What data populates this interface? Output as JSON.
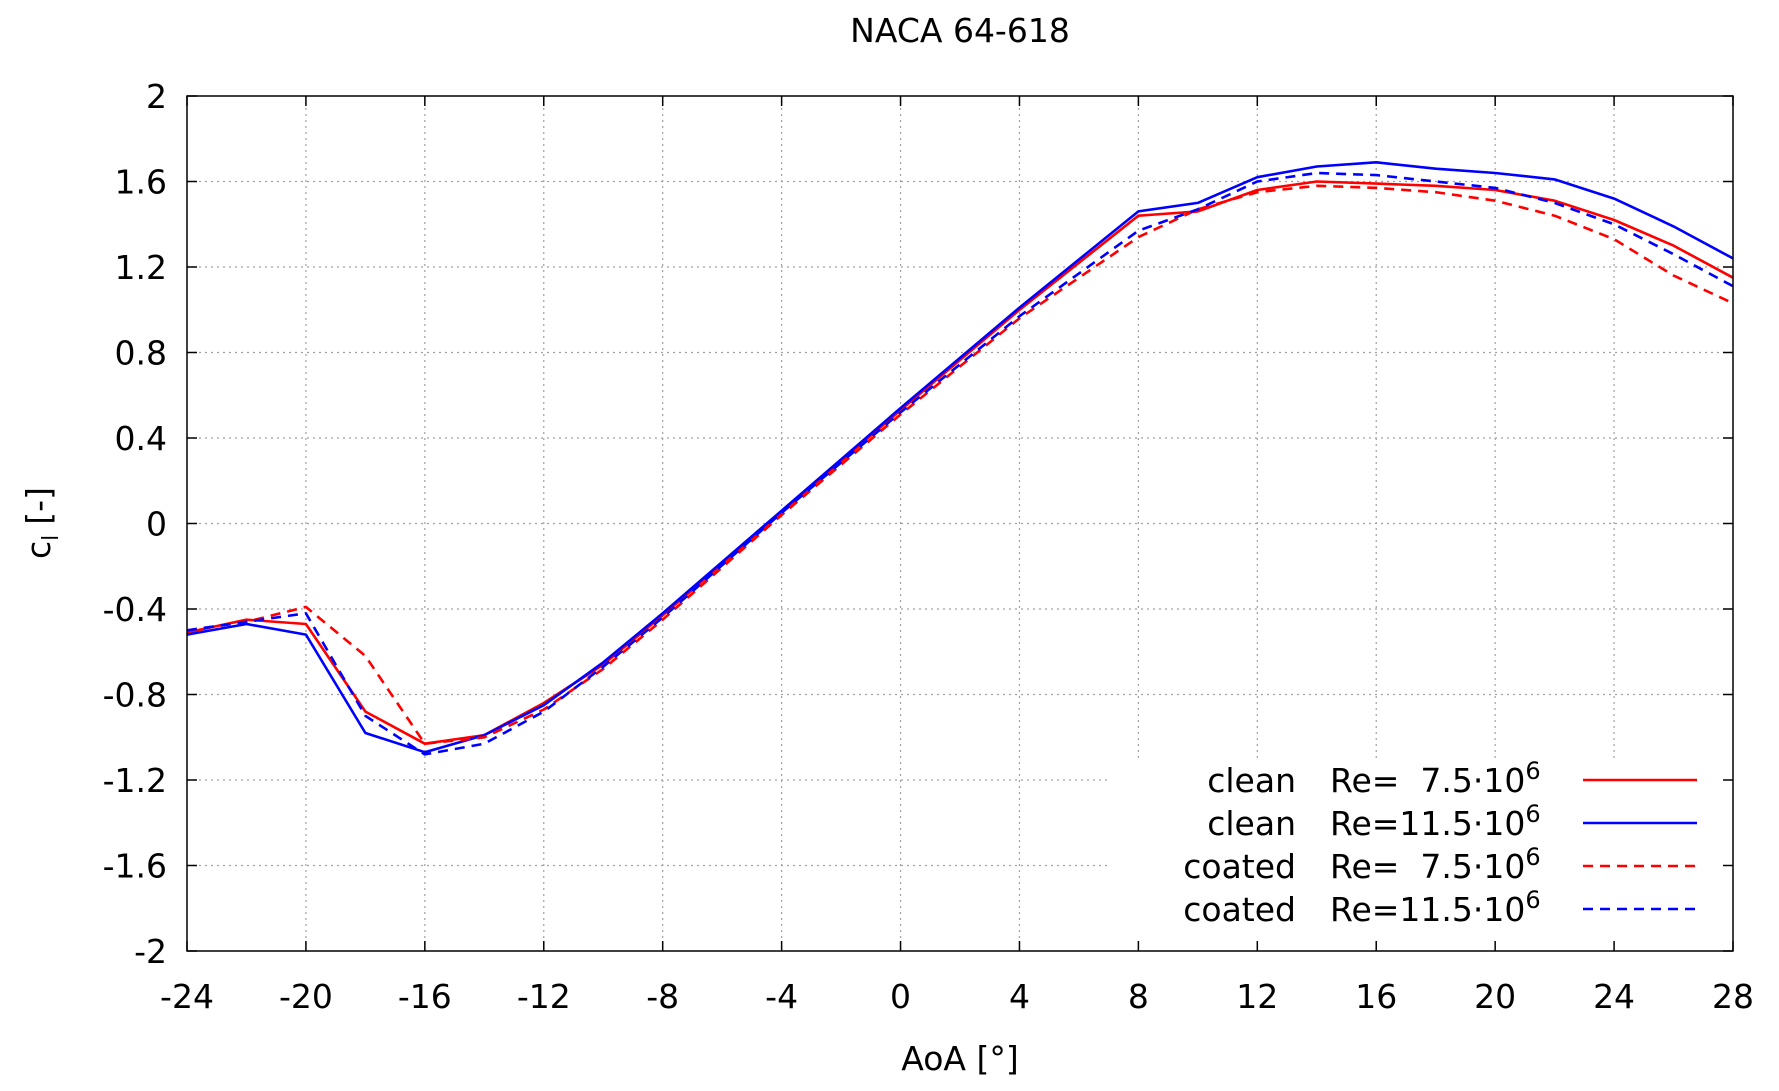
{
  "chart_data": {
    "type": "line",
    "title": "NACA 64-618",
    "xlabel": "AoA [°]",
    "ylabel_main": "c",
    "ylabel_sub": "l",
    "ylabel_unit": "[-]",
    "xlim": [
      -24,
      28
    ],
    "ylim": [
      -2,
      2
    ],
    "xticks": [
      -24,
      -20,
      -16,
      -12,
      -8,
      -4,
      0,
      4,
      8,
      12,
      16,
      20,
      24,
      28
    ],
    "xtick_labels": [
      "-24",
      "-20",
      "-16",
      "-12",
      "-8",
      "-4",
      "0",
      "4",
      "8",
      "12",
      "16",
      "20",
      "24",
      "28"
    ],
    "yticks": [
      2,
      1.6,
      1.2,
      0.8,
      0.4,
      0,
      -0.4,
      -0.8,
      -1.2,
      -1.6,
      -2
    ],
    "ytick_labels": [
      "2",
      "1.6",
      "1.2",
      "0.8",
      "0.4",
      "0",
      "-0.4",
      "-0.8",
      "-1.2",
      "-1.6",
      "-2"
    ],
    "grid": true,
    "legend_position": "bottom-right",
    "series": [
      {
        "name": "clean Re= 7.5·10^6",
        "legend_condition": "clean",
        "legend_re": "Re=  7.5·10",
        "legend_exp": "6",
        "color": "#ff0000",
        "dash": "solid",
        "x": [
          -24,
          -22,
          -20,
          -18,
          -16,
          -14,
          -12,
          -10,
          -8,
          -4,
          0,
          4,
          8,
          10,
          12,
          14,
          16,
          18,
          20,
          22,
          24,
          26,
          28
        ],
        "y": [
          -0.51,
          -0.45,
          -0.47,
          -0.88,
          -1.03,
          -0.99,
          -0.84,
          -0.66,
          -0.43,
          0.05,
          0.53,
          1.0,
          1.44,
          1.46,
          1.56,
          1.6,
          1.59,
          1.58,
          1.56,
          1.51,
          1.42,
          1.3,
          1.15
        ]
      },
      {
        "name": "clean Re=11.5·10^6",
        "legend_condition": "clean",
        "legend_re": "Re=11.5·10",
        "legend_exp": "6",
        "color": "#0000ff",
        "dash": "solid",
        "x": [
          -24,
          -22,
          -20,
          -18,
          -16,
          -14,
          -12,
          -10,
          -8,
          -4,
          0,
          4,
          8,
          10,
          12,
          14,
          16,
          18,
          20,
          22,
          24,
          26,
          28
        ],
        "y": [
          -0.52,
          -0.47,
          -0.52,
          -0.98,
          -1.07,
          -0.99,
          -0.85,
          -0.65,
          -0.42,
          0.06,
          0.54,
          1.01,
          1.46,
          1.5,
          1.62,
          1.67,
          1.69,
          1.66,
          1.64,
          1.61,
          1.52,
          1.39,
          1.24
        ]
      },
      {
        "name": "coated Re= 7.5·10^6",
        "legend_condition": "coated",
        "legend_re": "Re=  7.5·10",
        "legend_exp": "6",
        "color": "#ff0000",
        "dash": "dashed",
        "x": [
          -24,
          -22,
          -20,
          -18,
          -16,
          -14,
          -12,
          -10,
          -8,
          -4,
          0,
          4,
          8,
          10,
          12,
          14,
          16,
          18,
          20,
          22,
          24,
          26,
          28
        ],
        "y": [
          -0.5,
          -0.46,
          -0.39,
          -0.62,
          -1.03,
          -1.0,
          -0.87,
          -0.68,
          -0.45,
          0.04,
          0.51,
          0.96,
          1.34,
          1.47,
          1.55,
          1.58,
          1.57,
          1.55,
          1.51,
          1.44,
          1.33,
          1.16,
          1.03
        ]
      },
      {
        "name": "coated Re=11.5·10^6",
        "legend_condition": "coated",
        "legend_re": "Re=11.5·10",
        "legend_exp": "6",
        "color": "#0000ff",
        "dash": "dashed",
        "x": [
          -24,
          -22,
          -20,
          -18,
          -16,
          -14,
          -12,
          -10,
          -8,
          -4,
          0,
          4,
          8,
          10,
          12,
          14,
          16,
          18,
          20,
          22,
          24,
          26,
          28
        ],
        "y": [
          -0.5,
          -0.46,
          -0.42,
          -0.9,
          -1.08,
          -1.03,
          -0.88,
          -0.67,
          -0.44,
          0.05,
          0.52,
          0.97,
          1.37,
          1.47,
          1.6,
          1.64,
          1.63,
          1.6,
          1.57,
          1.5,
          1.4,
          1.26,
          1.11
        ]
      }
    ]
  }
}
